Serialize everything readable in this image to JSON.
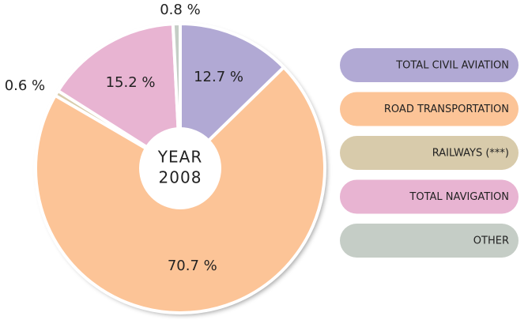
{
  "chart_data": {
    "type": "donut",
    "center_label": [
      "YEAR",
      "2008"
    ],
    "categories": [
      "TOTAL CIVIL AVIATION",
      "ROAD TRANSPORTATION",
      "RAILWAYS (***)",
      "TOTAL NAVIGATION",
      "OTHER"
    ],
    "values": [
      12.7,
      70.7,
      0.6,
      15.2,
      0.8
    ],
    "value_labels": [
      "12.7 %",
      "70.7 %",
      "0.6 %",
      "15.2 %",
      "0.8 %"
    ],
    "colors": [
      "#b1a9d4",
      "#fcc497",
      "#d8cbab",
      "#e8b4d2",
      "#c5cdc6"
    ],
    "legend": "right"
  }
}
